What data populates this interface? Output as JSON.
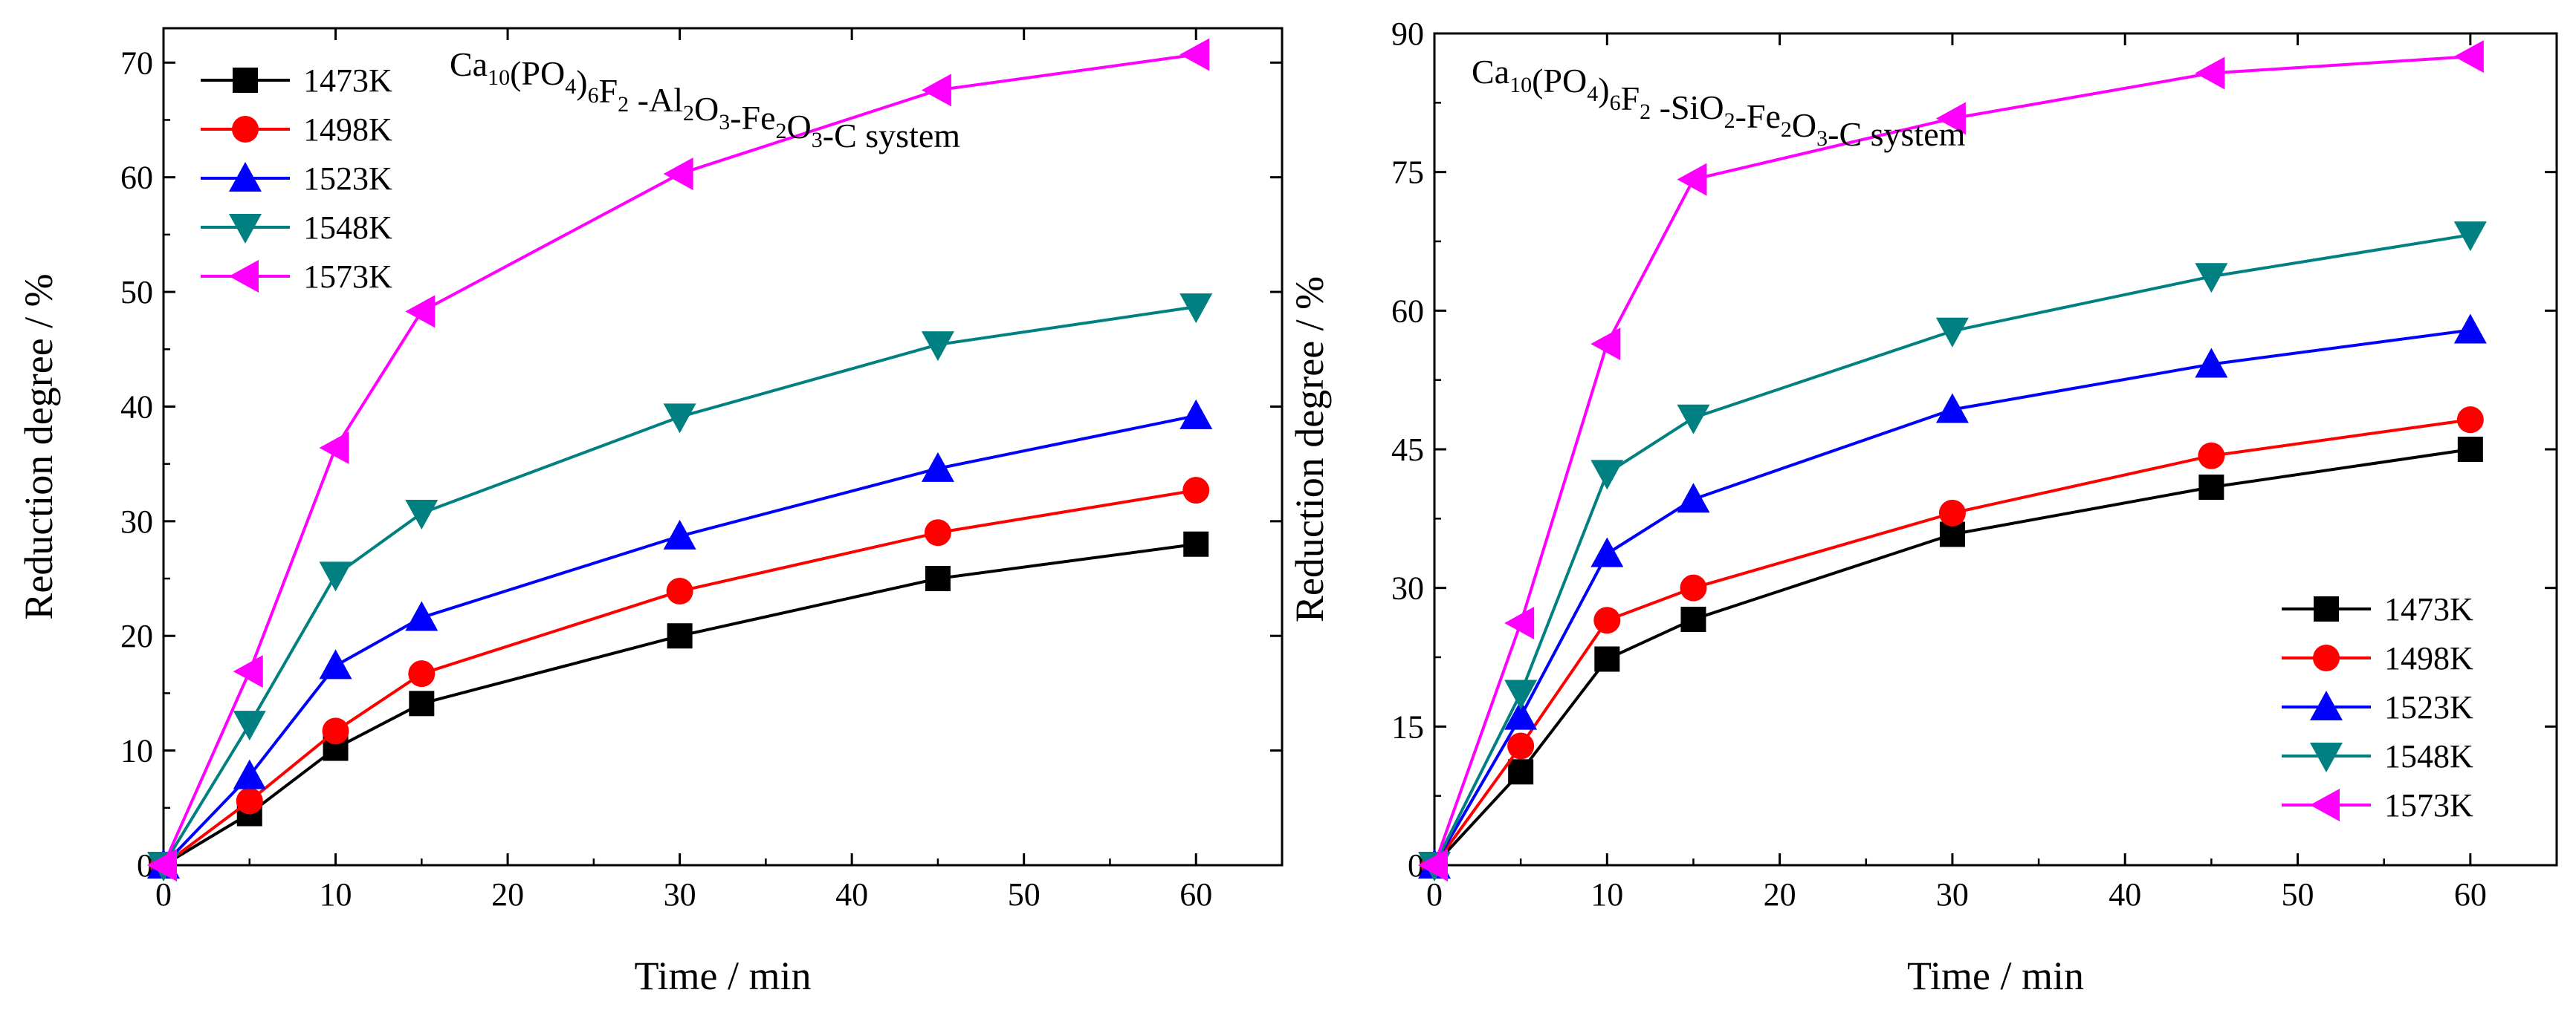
{
  "chart_data": [
    {
      "type": "line",
      "title_parts": [
        {
          "t": "Ca",
          "s": false
        },
        {
          "t": "10",
          "s": true
        },
        {
          "t": "(PO",
          "s": false
        },
        {
          "t": "4",
          "s": true
        },
        {
          "t": ")",
          "s": false
        },
        {
          "t": "6",
          "s": true
        },
        {
          "t": "F",
          "s": false
        },
        {
          "t": "2",
          "s": true
        },
        {
          "t": " -Al",
          "s": false
        },
        {
          "t": "2",
          "s": true
        },
        {
          "t": "O",
          "s": false
        },
        {
          "t": "3",
          "s": true
        },
        {
          "t": "-Fe",
          "s": false
        },
        {
          "t": "2",
          "s": true
        },
        {
          "t": "O",
          "s": false
        },
        {
          "t": "3",
          "s": true
        },
        {
          "t": "-C system",
          "s": false
        }
      ],
      "xlabel": "Time / min",
      "ylabel": "Reduction degree / %",
      "xlim": [
        0,
        65
      ],
      "ylim": [
        0,
        73
      ],
      "xticks": [
        0,
        10,
        20,
        30,
        40,
        50,
        60
      ],
      "yticks": [
        0,
        10,
        20,
        30,
        40,
        50,
        60,
        70
      ],
      "legend_position": "top-left",
      "x": [
        0,
        5,
        10,
        15,
        30,
        45,
        60
      ],
      "series": [
        {
          "name": "1473K",
          "color": "#000000",
          "marker": "square",
          "values": [
            0,
            4.5,
            10.2,
            14.1,
            20.0,
            25.0,
            28.0
          ]
        },
        {
          "name": "1498K",
          "color": "#ff0000",
          "marker": "circle",
          "values": [
            0,
            5.6,
            11.7,
            16.7,
            23.9,
            29.0,
            32.7
          ]
        },
        {
          "name": "1523K",
          "color": "#0000ff",
          "marker": "triangle-up",
          "values": [
            0,
            7.8,
            17.4,
            21.6,
            28.7,
            34.6,
            39.2
          ]
        },
        {
          "name": "1548K",
          "color": "#008080",
          "marker": "triangle-down",
          "values": [
            0,
            12.3,
            25.3,
            30.7,
            39.1,
            45.4,
            48.7
          ]
        },
        {
          "name": "1573K",
          "color": "#ff00ff",
          "marker": "triangle-left",
          "values": [
            0,
            16.9,
            36.4,
            48.3,
            60.3,
            67.6,
            70.7
          ]
        }
      ]
    },
    {
      "type": "line",
      "title_parts": [
        {
          "t": "Ca",
          "s": false
        },
        {
          "t": "10",
          "s": true
        },
        {
          "t": "(PO",
          "s": false
        },
        {
          "t": "4",
          "s": true
        },
        {
          "t": ")",
          "s": false
        },
        {
          "t": "6",
          "s": true
        },
        {
          "t": "F",
          "s": false
        },
        {
          "t": "2",
          "s": true
        },
        {
          "t": " -SiO",
          "s": false
        },
        {
          "t": "2",
          "s": true
        },
        {
          "t": "-Fe",
          "s": false
        },
        {
          "t": "2",
          "s": true
        },
        {
          "t": "O",
          "s": false
        },
        {
          "t": "3",
          "s": true
        },
        {
          "t": "-C system",
          "s": false
        }
      ],
      "xlabel": "Time / min",
      "ylabel": "Reduction degree / %",
      "xlim": [
        0,
        65
      ],
      "ylim": [
        0,
        90
      ],
      "xticks": [
        0,
        10,
        20,
        30,
        40,
        50,
        60
      ],
      "yticks": [
        0,
        15,
        30,
        45,
        60,
        75,
        90
      ],
      "legend_position": "bottom-right",
      "x": [
        0,
        5,
        10,
        15,
        30,
        45,
        60
      ],
      "series": [
        {
          "name": "1473K",
          "color": "#000000",
          "marker": "square",
          "values": [
            0,
            10.1,
            22.3,
            26.6,
            35.8,
            40.9,
            45.0
          ]
        },
        {
          "name": "1498K",
          "color": "#ff0000",
          "marker": "circle",
          "values": [
            0,
            12.9,
            26.5,
            30.0,
            38.1,
            44.3,
            48.2
          ]
        },
        {
          "name": "1523K",
          "color": "#0000ff",
          "marker": "triangle-up",
          "values": [
            0,
            16.1,
            33.7,
            39.6,
            49.3,
            54.2,
            57.9
          ]
        },
        {
          "name": "1548K",
          "color": "#008080",
          "marker": "triangle-down",
          "values": [
            0,
            18.6,
            42.4,
            48.4,
            57.8,
            63.7,
            68.2
          ]
        },
        {
          "name": "1573K",
          "color": "#ff00ff",
          "marker": "triangle-left",
          "values": [
            0,
            26.2,
            56.4,
            74.2,
            80.8,
            85.7,
            87.5
          ]
        }
      ]
    }
  ]
}
